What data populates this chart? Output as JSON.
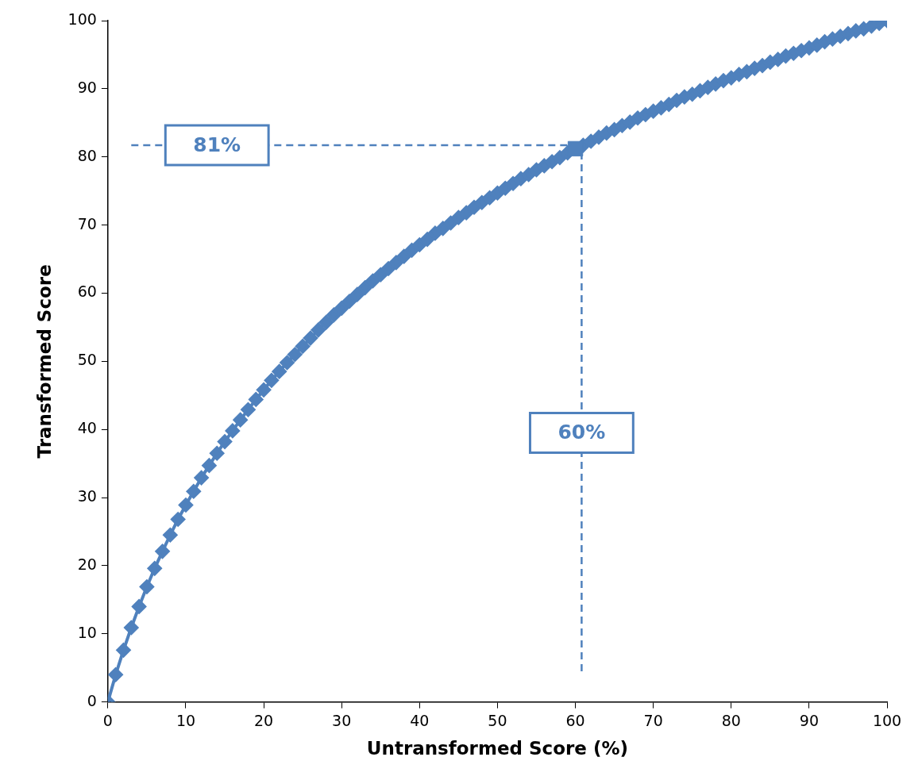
{
  "chart_data": {
    "type": "line",
    "xlabel": "Untransformed Score (%)",
    "ylabel": "Transformed Score",
    "xlim": [
      0,
      100
    ],
    "xticks": [
      0,
      10,
      20,
      30,
      40,
      50,
      60,
      70,
      80,
      90,
      100
    ],
    "ylim": [
      0,
      100
    ],
    "yticks": [
      0,
      10,
      20,
      30,
      40,
      50,
      60,
      70,
      80,
      90,
      100
    ],
    "marker": "diamond",
    "x": [
      0,
      1,
      2,
      3,
      4,
      5,
      6,
      7,
      8,
      9,
      10,
      11,
      12,
      13,
      14,
      15,
      16,
      17,
      18,
      19,
      20,
      21,
      22,
      23,
      24,
      25,
      26,
      27,
      28,
      29,
      30,
      31,
      32,
      33,
      34,
      35,
      36,
      37,
      38,
      39,
      40,
      41,
      42,
      43,
      44,
      45,
      46,
      47,
      48,
      49,
      50,
      51,
      52,
      53,
      54,
      55,
      56,
      57,
      58,
      59,
      60,
      61,
      62,
      63,
      64,
      65,
      66,
      67,
      68,
      69,
      70,
      71,
      72,
      73,
      74,
      75,
      76,
      77,
      78,
      79,
      80,
      81,
      82,
      83,
      84,
      85,
      86,
      87,
      88,
      89,
      90,
      91,
      92,
      93,
      94,
      95,
      96,
      97,
      98,
      99,
      100
    ],
    "series": [
      {
        "color": "#4f81bd",
        "values": [
          0,
          4.0,
          7.6,
          10.9,
          14.0,
          16.9,
          19.6,
          22.1,
          24.5,
          26.8,
          28.9,
          30.9,
          32.9,
          34.7,
          36.5,
          38.2,
          39.8,
          41.4,
          42.9,
          44.4,
          45.8,
          47.2,
          48.5,
          49.8,
          51.0,
          52.2,
          53.4,
          54.6,
          55.7,
          56.8,
          57.8,
          58.8,
          59.8,
          60.8,
          61.8,
          62.7,
          63.6,
          64.5,
          65.4,
          66.3,
          67.1,
          67.9,
          68.8,
          69.5,
          70.3,
          71.1,
          71.8,
          72.6,
          73.3,
          74.0,
          74.7,
          75.4,
          76.1,
          76.8,
          77.4,
          78.1,
          78.7,
          79.3,
          79.9,
          80.6,
          null,
          81.7,
          82.3,
          82.9,
          83.5,
          84.0,
          84.6,
          85.1,
          85.7,
          86.2,
          86.7,
          87.2,
          87.7,
          88.3,
          88.8,
          89.2,
          89.7,
          90.2,
          90.7,
          91.2,
          91.6,
          92.1,
          92.5,
          93.0,
          93.4,
          93.9,
          94.3,
          94.8,
          95.2,
          95.6,
          96.0,
          96.4,
          96.9,
          97.3,
          97.7,
          98.1,
          98.5,
          98.8,
          99.2,
          99.6,
          100
        ]
      },
      {
        "type": "line",
        "color": "#4f81bd",
        "marker": "none",
        "line_style": "dashed",
        "x": [
          3,
          60
        ],
        "values": [
          81.7,
          81.7
        ]
      },
      {
        "type": "line",
        "color": "#4f81bd",
        "marker": "none",
        "line_style": "dashed",
        "x": [
          60.8,
          60.8
        ],
        "values": [
          4.5,
          81.2
        ]
      },
      {
        "type": "scatter",
        "color": "#4f81bd",
        "marker": "square",
        "x": [
          60
        ],
        "values": [
          81.2
        ]
      }
    ],
    "annotations": [
      {
        "text": "81%",
        "x": 14,
        "y": 81.7
      },
      {
        "text": "60%",
        "x": 60.8,
        "y": 39.5
      }
    ]
  }
}
